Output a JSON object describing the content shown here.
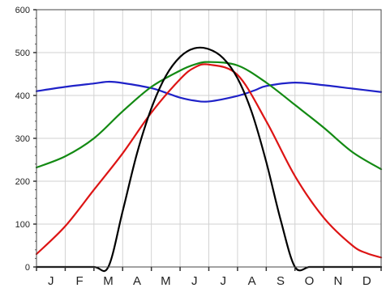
{
  "chart_data": {
    "type": "line",
    "title": "",
    "xlabel": "",
    "ylabel": "",
    "x_ticks": [
      "J",
      "F",
      "M",
      "A",
      "M",
      "J",
      "J",
      "A",
      "S",
      "O",
      "N",
      "D"
    ],
    "xlim": [
      0,
      12
    ],
    "ylim": [
      0,
      600
    ],
    "y_ticks": [
      0,
      100,
      200,
      300,
      400,
      500,
      600
    ],
    "grid": true,
    "legend": "none",
    "series": [
      {
        "color": "#1f22c8",
        "x": [
          0,
          1,
          2,
          2.5,
          3,
          4,
          4.6,
          5,
          5.5,
          6,
          7,
          7.6,
          8,
          9,
          10,
          11,
          12
        ],
        "y": [
          410,
          420,
          428,
          432,
          429,
          417,
          404,
          395,
          388,
          386,
          399,
          412,
          422,
          430,
          424,
          416,
          408
        ]
      },
      {
        "color": "#138a13",
        "x": [
          0,
          1,
          2,
          3,
          4,
          5,
          5.5,
          6,
          7,
          8,
          9,
          10,
          11,
          12
        ],
        "y": [
          232,
          258,
          300,
          363,
          420,
          458,
          472,
          478,
          470,
          430,
          378,
          325,
          268,
          228
        ]
      },
      {
        "color": "#dd1414",
        "x": [
          0,
          1,
          2,
          3,
          4,
          5,
          5.5,
          6,
          7,
          8,
          9,
          10,
          11,
          11.5,
          12
        ],
        "y": [
          30,
          95,
          180,
          265,
          360,
          438,
          465,
          472,
          448,
          340,
          212,
          115,
          50,
          32,
          22
        ]
      },
      {
        "color": "#000000",
        "x": [
          0,
          1,
          2,
          2.5,
          3,
          3.5,
          4,
          4.5,
          5,
          5.5,
          6,
          6.5,
          7,
          7.5,
          8,
          8.5,
          9,
          9.5,
          10,
          11,
          12
        ],
        "y": [
          0,
          0,
          0,
          0,
          130,
          265,
          370,
          445,
          490,
          510,
          508,
          487,
          440,
          360,
          245,
          110,
          0,
          0,
          0,
          0,
          0
        ]
      }
    ]
  }
}
